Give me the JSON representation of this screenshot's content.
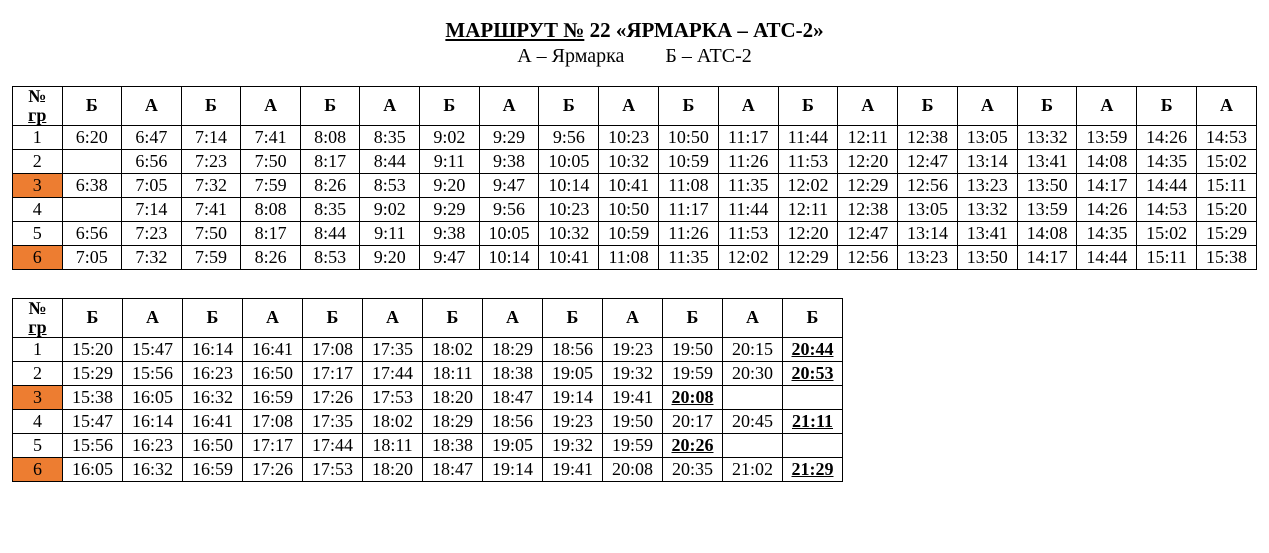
{
  "title": {
    "route_label": "МАРШРУТ  №",
    "route_no": "22",
    "route_name": "«ЯРМАРКА – АТС-2»"
  },
  "subtitle": {
    "a": "А – Ярмарка",
    "b": "Б – АТС-2"
  },
  "header_gr_top": "№",
  "header_gr_bottom": "гр",
  "styles": {
    "highlight_color": "#ed7d31",
    "border_color": "#000000",
    "background": "#ffffff",
    "font_family": "Times New Roman",
    "cell_font_size_pt": 13,
    "header_font_weight": "bold"
  },
  "table1": {
    "col_labels": [
      "Б",
      "А",
      "Б",
      "А",
      "Б",
      "А",
      "Б",
      "А",
      "Б",
      "А",
      "Б",
      "А",
      "Б",
      "А",
      "Б",
      "А",
      "Б",
      "А",
      "Б",
      "А"
    ],
    "highlight_rows": [
      3,
      6
    ],
    "rows": [
      {
        "gr": "1",
        "cells": [
          {
            "v": "6:20"
          },
          {
            "v": "6:47"
          },
          {
            "v": "7:14"
          },
          {
            "v": "7:41"
          },
          {
            "v": "8:08"
          },
          {
            "v": "8:35"
          },
          {
            "v": "9:02"
          },
          {
            "v": "9:29"
          },
          {
            "v": "9:56"
          },
          {
            "v": "10:23"
          },
          {
            "v": "10:50"
          },
          {
            "v": "11:17"
          },
          {
            "v": "11:44"
          },
          {
            "v": "12:11"
          },
          {
            "v": "12:38"
          },
          {
            "v": "13:05"
          },
          {
            "v": "13:32"
          },
          {
            "v": "13:59"
          },
          {
            "v": "14:26"
          },
          {
            "v": "14:53"
          }
        ]
      },
      {
        "gr": "2",
        "cells": [
          {
            "v": ""
          },
          {
            "v": "6:56"
          },
          {
            "v": "7:23"
          },
          {
            "v": "7:50"
          },
          {
            "v": "8:17"
          },
          {
            "v": "8:44"
          },
          {
            "v": "9:11"
          },
          {
            "v": "9:38"
          },
          {
            "v": "10:05"
          },
          {
            "v": "10:32"
          },
          {
            "v": "10:59"
          },
          {
            "v": "11:26"
          },
          {
            "v": "11:53"
          },
          {
            "v": "12:20"
          },
          {
            "v": "12:47"
          },
          {
            "v": "13:14"
          },
          {
            "v": "13:41"
          },
          {
            "v": "14:08"
          },
          {
            "v": "14:35"
          },
          {
            "v": "15:02"
          }
        ]
      },
      {
        "gr": "3",
        "cells": [
          {
            "v": "6:38"
          },
          {
            "v": "7:05"
          },
          {
            "v": "7:32"
          },
          {
            "v": "7:59"
          },
          {
            "v": "8:26"
          },
          {
            "v": "8:53"
          },
          {
            "v": "9:20"
          },
          {
            "v": "9:47"
          },
          {
            "v": "10:14"
          },
          {
            "v": "10:41"
          },
          {
            "v": "11:08"
          },
          {
            "v": "11:35"
          },
          {
            "v": "12:02"
          },
          {
            "v": "12:29"
          },
          {
            "v": "12:56"
          },
          {
            "v": "13:23"
          },
          {
            "v": "13:50"
          },
          {
            "v": "14:17"
          },
          {
            "v": "14:44"
          },
          {
            "v": "15:11"
          }
        ]
      },
      {
        "gr": "4",
        "cells": [
          {
            "v": ""
          },
          {
            "v": "7:14"
          },
          {
            "v": "7:41"
          },
          {
            "v": "8:08"
          },
          {
            "v": "8:35"
          },
          {
            "v": "9:02"
          },
          {
            "v": "9:29"
          },
          {
            "v": "9:56"
          },
          {
            "v": "10:23"
          },
          {
            "v": "10:50"
          },
          {
            "v": "11:17"
          },
          {
            "v": "11:44"
          },
          {
            "v": "12:11"
          },
          {
            "v": "12:38"
          },
          {
            "v": "13:05"
          },
          {
            "v": "13:32"
          },
          {
            "v": "13:59"
          },
          {
            "v": "14:26"
          },
          {
            "v": "14:53"
          },
          {
            "v": "15:20"
          }
        ]
      },
      {
        "gr": "5",
        "cells": [
          {
            "v": "6:56"
          },
          {
            "v": "7:23"
          },
          {
            "v": "7:50"
          },
          {
            "v": "8:17"
          },
          {
            "v": "8:44"
          },
          {
            "v": "9:11"
          },
          {
            "v": "9:38"
          },
          {
            "v": "10:05"
          },
          {
            "v": "10:32"
          },
          {
            "v": "10:59"
          },
          {
            "v": "11:26"
          },
          {
            "v": "11:53"
          },
          {
            "v": "12:20"
          },
          {
            "v": "12:47"
          },
          {
            "v": "13:14"
          },
          {
            "v": "13:41"
          },
          {
            "v": "14:08"
          },
          {
            "v": "14:35"
          },
          {
            "v": "15:02"
          },
          {
            "v": "15:29"
          }
        ]
      },
      {
        "gr": "6",
        "cells": [
          {
            "v": "7:05"
          },
          {
            "v": "7:32"
          },
          {
            "v": "7:59"
          },
          {
            "v": "8:26"
          },
          {
            "v": "8:53"
          },
          {
            "v": "9:20"
          },
          {
            "v": "9:47"
          },
          {
            "v": "10:14"
          },
          {
            "v": "10:41"
          },
          {
            "v": "11:08"
          },
          {
            "v": "11:35"
          },
          {
            "v": "12:02"
          },
          {
            "v": "12:29"
          },
          {
            "v": "12:56"
          },
          {
            "v": "13:23"
          },
          {
            "v": "13:50"
          },
          {
            "v": "14:17"
          },
          {
            "v": "14:44"
          },
          {
            "v": "15:11"
          },
          {
            "v": "15:38"
          }
        ]
      }
    ]
  },
  "table2": {
    "col_labels": [
      "Б",
      "А",
      "Б",
      "А",
      "Б",
      "А",
      "Б",
      "А",
      "Б",
      "А",
      "Б",
      "А",
      "Б"
    ],
    "highlight_rows": [
      3,
      6
    ],
    "rows": [
      {
        "gr": "1",
        "cells": [
          {
            "v": "15:20"
          },
          {
            "v": "15:47"
          },
          {
            "v": "16:14"
          },
          {
            "v": "16:41"
          },
          {
            "v": "17:08"
          },
          {
            "v": "17:35"
          },
          {
            "v": "18:02"
          },
          {
            "v": "18:29"
          },
          {
            "v": "18:56"
          },
          {
            "v": "19:23"
          },
          {
            "v": "19:50"
          },
          {
            "v": "20:15"
          },
          {
            "v": "20:44",
            "bu": true
          }
        ]
      },
      {
        "gr": "2",
        "cells": [
          {
            "v": "15:29"
          },
          {
            "v": "15:56"
          },
          {
            "v": "16:23"
          },
          {
            "v": "16:50"
          },
          {
            "v": "17:17"
          },
          {
            "v": "17:44"
          },
          {
            "v": "18:11"
          },
          {
            "v": "18:38"
          },
          {
            "v": "19:05"
          },
          {
            "v": "19:32"
          },
          {
            "v": "19:59"
          },
          {
            "v": "20:30"
          },
          {
            "v": "20:53",
            "bu": true
          }
        ]
      },
      {
        "gr": "3",
        "cells": [
          {
            "v": "15:38"
          },
          {
            "v": "16:05"
          },
          {
            "v": "16:32"
          },
          {
            "v": "16:59"
          },
          {
            "v": "17:26"
          },
          {
            "v": "17:53"
          },
          {
            "v": "18:20"
          },
          {
            "v": "18:47"
          },
          {
            "v": "19:14"
          },
          {
            "v": "19:41"
          },
          {
            "v": "20:08",
            "bu": true
          },
          {
            "v": ""
          },
          {
            "v": ""
          }
        ]
      },
      {
        "gr": "4",
        "cells": [
          {
            "v": "15:47"
          },
          {
            "v": "16:14"
          },
          {
            "v": "16:41"
          },
          {
            "v": "17:08"
          },
          {
            "v": "17:35"
          },
          {
            "v": "18:02"
          },
          {
            "v": "18:29"
          },
          {
            "v": "18:56"
          },
          {
            "v": "19:23"
          },
          {
            "v": "19:50"
          },
          {
            "v": "20:17"
          },
          {
            "v": "20:45"
          },
          {
            "v": "21:11",
            "bu": true
          }
        ]
      },
      {
        "gr": "5",
        "cells": [
          {
            "v": "15:56"
          },
          {
            "v": "16:23"
          },
          {
            "v": "16:50"
          },
          {
            "v": "17:17"
          },
          {
            "v": "17:44"
          },
          {
            "v": "18:11"
          },
          {
            "v": "18:38"
          },
          {
            "v": "19:05"
          },
          {
            "v": "19:32"
          },
          {
            "v": "19:59"
          },
          {
            "v": "20:26",
            "bu": true
          },
          {
            "v": ""
          },
          {
            "v": ""
          }
        ]
      },
      {
        "gr": "6",
        "cells": [
          {
            "v": "16:05"
          },
          {
            "v": "16:32"
          },
          {
            "v": "16:59"
          },
          {
            "v": "17:26"
          },
          {
            "v": "17:53"
          },
          {
            "v": "18:20"
          },
          {
            "v": "18:47"
          },
          {
            "v": "19:14"
          },
          {
            "v": "19:41"
          },
          {
            "v": "20:08"
          },
          {
            "v": "20:35"
          },
          {
            "v": "21:02"
          },
          {
            "v": "21:29",
            "bu": true
          }
        ]
      }
    ]
  }
}
